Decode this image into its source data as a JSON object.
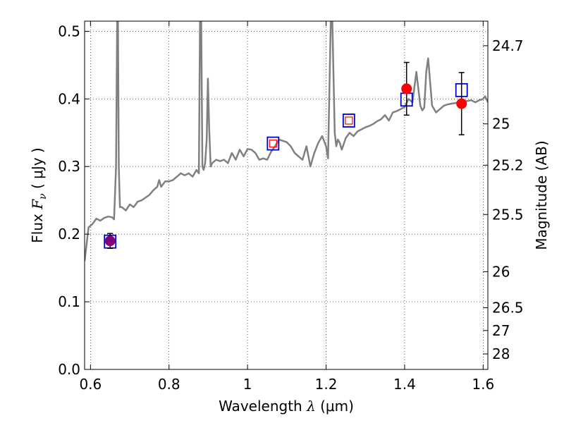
{
  "chart_data": {
    "type": "line",
    "xlabel_prefix": "Wavelength  ",
    "xlabel_symbol": "λ",
    "xlabel_unit": " (μm)",
    "ylabel_prefix": "Flux  ",
    "ylabel_symbol": "F",
    "ylabel_subscript": "ν",
    "ylabel_unit": "  ( μJy )",
    "y2label": "Magnitude (AB)",
    "xlim": [
      0.585,
      1.612
    ],
    "ylim": [
      0.0,
      0.515
    ],
    "x_ticks": [
      {
        "value": 0.6,
        "label": "0.6"
      },
      {
        "value": 0.8,
        "label": "0.8"
      },
      {
        "value": 1.0,
        "label": "1"
      },
      {
        "value": 1.2,
        "label": "1.2"
      },
      {
        "value": 1.4,
        "label": "1.4"
      },
      {
        "value": 1.6,
        "label": "1.6"
      }
    ],
    "y_ticks": [
      {
        "value": 0.0,
        "label": "0.0"
      },
      {
        "value": 0.1,
        "label": "0.1"
      },
      {
        "value": 0.2,
        "label": "0.2"
      },
      {
        "value": 0.3,
        "label": "0.3"
      },
      {
        "value": 0.4,
        "label": "0.4"
      },
      {
        "value": 0.5,
        "label": "0.5"
      }
    ],
    "y2_ticks": [
      {
        "value": 24.7,
        "label": "24.7"
      },
      {
        "value": 25,
        "label": "25"
      },
      {
        "value": 25.2,
        "label": "25.2"
      },
      {
        "value": 25.5,
        "label": "25.5"
      },
      {
        "value": 26,
        "label": "26"
      },
      {
        "value": 26.5,
        "label": "26.5"
      },
      {
        "value": 27,
        "label": "27"
      },
      {
        "value": 28,
        "label": "28"
      }
    ],
    "grid": true,
    "colors": {
      "model": "#808080",
      "observed": "#ff0000",
      "model_photometry_outer": "#0000cc",
      "model_photometry_inner": "#ff0000",
      "blended": "#800080"
    },
    "model_spectrum": {
      "x": [
        0.585,
        0.595,
        0.605,
        0.615,
        0.625,
        0.635,
        0.645,
        0.655,
        0.66,
        0.665,
        0.668,
        0.67,
        0.672,
        0.675,
        0.68,
        0.69,
        0.7,
        0.71,
        0.72,
        0.73,
        0.74,
        0.75,
        0.76,
        0.77,
        0.775,
        0.78,
        0.79,
        0.8,
        0.81,
        0.82,
        0.83,
        0.84,
        0.85,
        0.86,
        0.87,
        0.876,
        0.879,
        0.882,
        0.885,
        0.888,
        0.892,
        0.896,
        0.899,
        0.902,
        0.906,
        0.91,
        0.92,
        0.93,
        0.94,
        0.95,
        0.96,
        0.97,
        0.98,
        0.99,
        1.0,
        1.01,
        1.02,
        1.03,
        1.04,
        1.05,
        1.06,
        1.07,
        1.08,
        1.09,
        1.1,
        1.11,
        1.12,
        1.13,
        1.14,
        1.15,
        1.16,
        1.17,
        1.18,
        1.19,
        1.2,
        1.205,
        1.208,
        1.212,
        1.216,
        1.222,
        1.226,
        1.23,
        1.235,
        1.24,
        1.25,
        1.26,
        1.27,
        1.28,
        1.29,
        1.3,
        1.31,
        1.32,
        1.33,
        1.34,
        1.35,
        1.36,
        1.37,
        1.38,
        1.39,
        1.4,
        1.41,
        1.42,
        1.43,
        1.44,
        1.445,
        1.45,
        1.455,
        1.46,
        1.47,
        1.48,
        1.49,
        1.5,
        1.51,
        1.52,
        1.53,
        1.54,
        1.55,
        1.56,
        1.57,
        1.58,
        1.59,
        1.6,
        1.605,
        1.612
      ],
      "y": [
        0.16,
        0.21,
        0.215,
        0.223,
        0.22,
        0.224,
        0.226,
        0.225,
        0.222,
        0.3,
        0.515,
        0.515,
        0.3,
        0.24,
        0.24,
        0.235,
        0.244,
        0.24,
        0.248,
        0.25,
        0.254,
        0.258,
        0.265,
        0.27,
        0.28,
        0.27,
        0.278,
        0.278,
        0.28,
        0.285,
        0.29,
        0.287,
        0.29,
        0.285,
        0.295,
        0.29,
        0.515,
        0.515,
        0.3,
        0.295,
        0.305,
        0.34,
        0.43,
        0.36,
        0.3,
        0.305,
        0.31,
        0.308,
        0.31,
        0.305,
        0.32,
        0.31,
        0.325,
        0.315,
        0.326,
        0.325,
        0.32,
        0.31,
        0.312,
        0.31,
        0.322,
        0.33,
        0.34,
        0.338,
        0.336,
        0.33,
        0.32,
        0.315,
        0.31,
        0.33,
        0.3,
        0.32,
        0.335,
        0.345,
        0.33,
        0.312,
        0.4,
        0.515,
        0.515,
        0.35,
        0.33,
        0.34,
        0.335,
        0.325,
        0.342,
        0.35,
        0.345,
        0.352,
        0.355,
        0.358,
        0.36,
        0.363,
        0.367,
        0.37,
        0.376,
        0.368,
        0.38,
        0.382,
        0.385,
        0.388,
        0.4,
        0.395,
        0.44,
        0.39,
        0.383,
        0.387,
        0.44,
        0.46,
        0.39,
        0.38,
        0.385,
        0.39,
        0.392,
        0.393,
        0.394,
        0.395,
        0.396,
        0.397,
        0.398,
        0.395,
        0.398,
        0.4,
        0.404,
        0.395
      ]
    },
    "observed_points": [
      {
        "x": 0.65,
        "y": 0.19,
        "err": 0.011
      },
      {
        "x": 1.405,
        "y": 0.415,
        "err": 0.039
      },
      {
        "x": 1.545,
        "y": 0.393,
        "err": 0.046
      }
    ],
    "model_photometry": [
      {
        "x": 0.65,
        "y": 0.189
      },
      {
        "x": 1.065,
        "y": 0.334
      },
      {
        "x": 1.258,
        "y": 0.368
      },
      {
        "x": 1.405,
        "y": 0.399
      },
      {
        "x": 1.545,
        "y": 0.413
      }
    ],
    "narrow_points": [
      {
        "x": 1.065,
        "y": 0.334
      },
      {
        "x": 1.258,
        "y": 0.368
      }
    ]
  }
}
